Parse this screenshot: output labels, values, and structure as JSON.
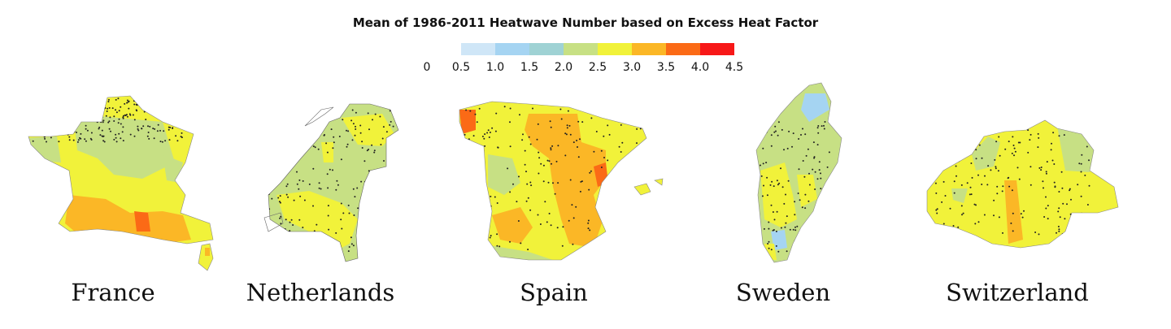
{
  "title": "Mean of 1986-2011 Heatwave Number based on Excess Heat Factor",
  "legend": {
    "ticks": [
      "0",
      "0.5",
      "1.0",
      "1.5",
      "2.0",
      "2.5",
      "3.0",
      "3.5",
      "4.0",
      "4.5"
    ],
    "colors": [
      "#cfe6f7",
      "#a5d4f2",
      "#9fd2d4",
      "#c7e084",
      "#f1f23a",
      "#fbb726",
      "#fb6a16",
      "#f71818"
    ]
  },
  "countries": [
    {
      "key": "france",
      "name": "France",
      "base_color": "#f1f23a"
    },
    {
      "key": "netherlands",
      "name": "Netherlands",
      "base_color": "#c7e084"
    },
    {
      "key": "spain",
      "name": "Spain",
      "base_color": "#f1f23a"
    },
    {
      "key": "sweden",
      "name": "Sweden",
      "base_color": "#c7e084"
    },
    {
      "key": "switzerland",
      "name": "Switzerland",
      "base_color": "#f1f23a"
    }
  ]
}
